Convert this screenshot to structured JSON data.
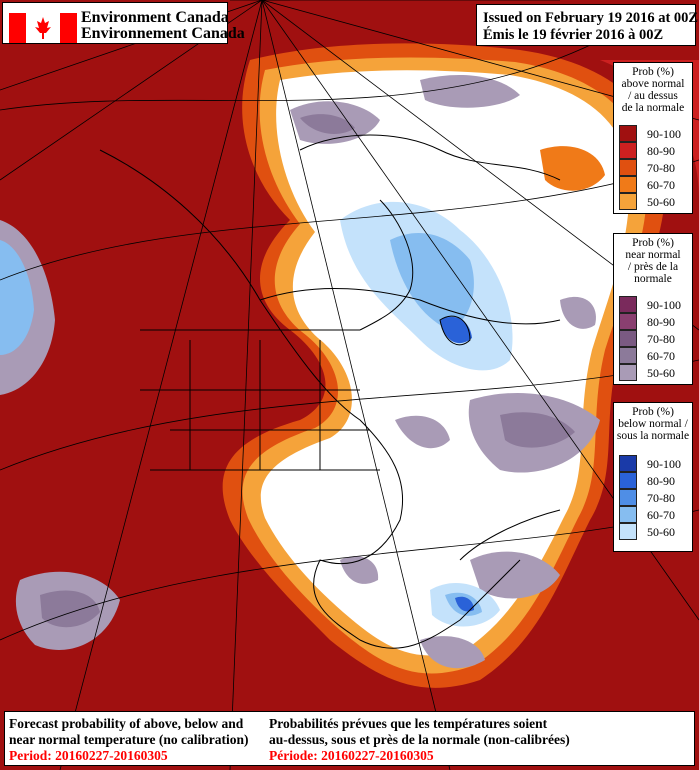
{
  "header": {
    "agency_en": "Environment Canada",
    "agency_fr": "Environnement Canada",
    "issued_en": "Issued on February 19 2016 at 00Z",
    "issued_fr": "Émis le 19 février 2016 à 00Z",
    "flag_colors": {
      "red": "#ff0000",
      "white": "#ffffff"
    }
  },
  "legends": [
    {
      "id": "above",
      "title_lines": [
        "Prob (%)",
        "above normal",
        "/ au dessus",
        "de la normale"
      ],
      "items": [
        {
          "label": "90-100",
          "color": "#a01010"
        },
        {
          "label": "80-90",
          "color": "#cc2020"
        },
        {
          "label": "70-80",
          "color": "#e05010"
        },
        {
          "label": "60-70",
          "color": "#f07a18"
        },
        {
          "label": "50-60",
          "color": "#f5a33a"
        }
      ]
    },
    {
      "id": "near",
      "title_lines": [
        "Prob (%)",
        "near normal",
        "/ près de la",
        "normale"
      ],
      "items": [
        {
          "label": "90-100",
          "color": "#7a2a5c"
        },
        {
          "label": "80-90",
          "color": "#8a3f70"
        },
        {
          "label": "70-80",
          "color": "#7a5a82"
        },
        {
          "label": "60-70",
          "color": "#8c7a9a"
        },
        {
          "label": "50-60",
          "color": "#a99bb6"
        }
      ]
    },
    {
      "id": "below",
      "title_lines": [
        "Prob (%)",
        "below normal /",
        "sous la normale"
      ],
      "items": [
        {
          "label": "90-100",
          "color": "#1a3aa8"
        },
        {
          "label": "80-90",
          "color": "#2a62d8"
        },
        {
          "label": "70-80",
          "color": "#4f8ee6"
        },
        {
          "label": "60-70",
          "color": "#86bdf0"
        },
        {
          "label": "50-60",
          "color": "#c4e2fb"
        }
      ]
    }
  ],
  "footer": {
    "en_line1": "Forecast probability of above, below and",
    "en_line2": "near normal temperature (no calibration)",
    "en_period": "Period: 20160227-20160305",
    "fr_line1": "Probabilités prévues que les températures soient",
    "fr_line2": "au-dessus, sous et près de la normale (non-calibrées)",
    "fr_period": "Période: 20160227-20160305"
  },
  "map_colors": {
    "background_white": "#ffffff",
    "above_dark": "#a01010",
    "above_red": "#cc2020",
    "above_orange": "#e05010",
    "above_light_orange": "#f5a33a",
    "near_mid": "#8c7a9a",
    "near_light": "#a99bb6",
    "below_light": "#c4e2fb",
    "below_mid": "#86bdf0",
    "below_dark": "#2a62d8"
  }
}
